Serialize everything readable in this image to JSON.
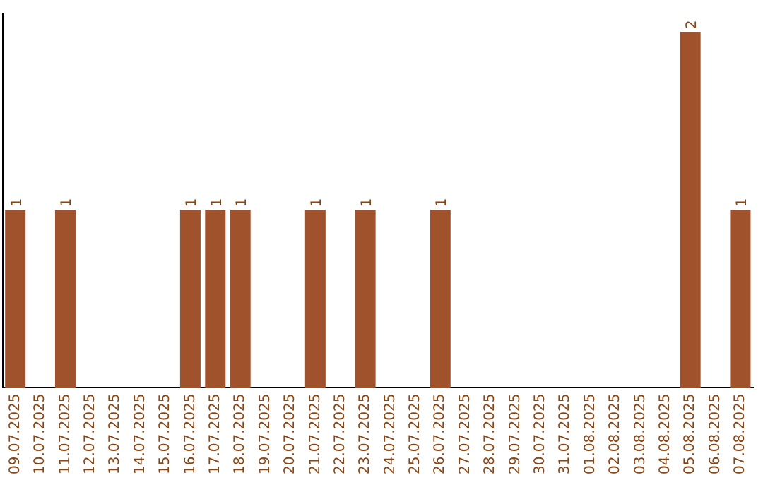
{
  "chart_data": {
    "type": "bar",
    "categories": [
      "09.07.2025",
      "10.07.2025",
      "11.07.2025",
      "12.07.2025",
      "13.07.2025",
      "14.07.2025",
      "15.07.2025",
      "16.07.2025",
      "17.07.2025",
      "18.07.2025",
      "19.07.2025",
      "20.07.2025",
      "21.07.2025",
      "22.07.2025",
      "23.07.2025",
      "24.07.2025",
      "25.07.2025",
      "26.07.2025",
      "27.07.2025",
      "28.07.2025",
      "29.07.2025",
      "30.07.2025",
      "31.07.2025",
      "01.08.2025",
      "02.08.2025",
      "03.08.2025",
      "04.08.2025",
      "05.08.2025",
      "06.08.2025",
      "07.08.2025"
    ],
    "values": [
      1,
      0,
      1,
      0,
      0,
      0,
      0,
      1,
      1,
      1,
      0,
      0,
      1,
      0,
      1,
      0,
      0,
      1,
      0,
      0,
      0,
      0,
      0,
      0,
      0,
      0,
      0,
      2,
      0,
      1
    ],
    "value_labels": [
      "1",
      null,
      "1",
      null,
      null,
      null,
      null,
      "1",
      "1",
      "1",
      null,
      null,
      "1",
      null,
      "1",
      null,
      null,
      "1",
      null,
      null,
      null,
      null,
      null,
      null,
      null,
      null,
      null,
      "2",
      null,
      "1"
    ],
    "color": "#a0522d",
    "ylim": [
      0,
      2.1
    ],
    "tick_labels": "x",
    "grid": false,
    "legend": false
  }
}
